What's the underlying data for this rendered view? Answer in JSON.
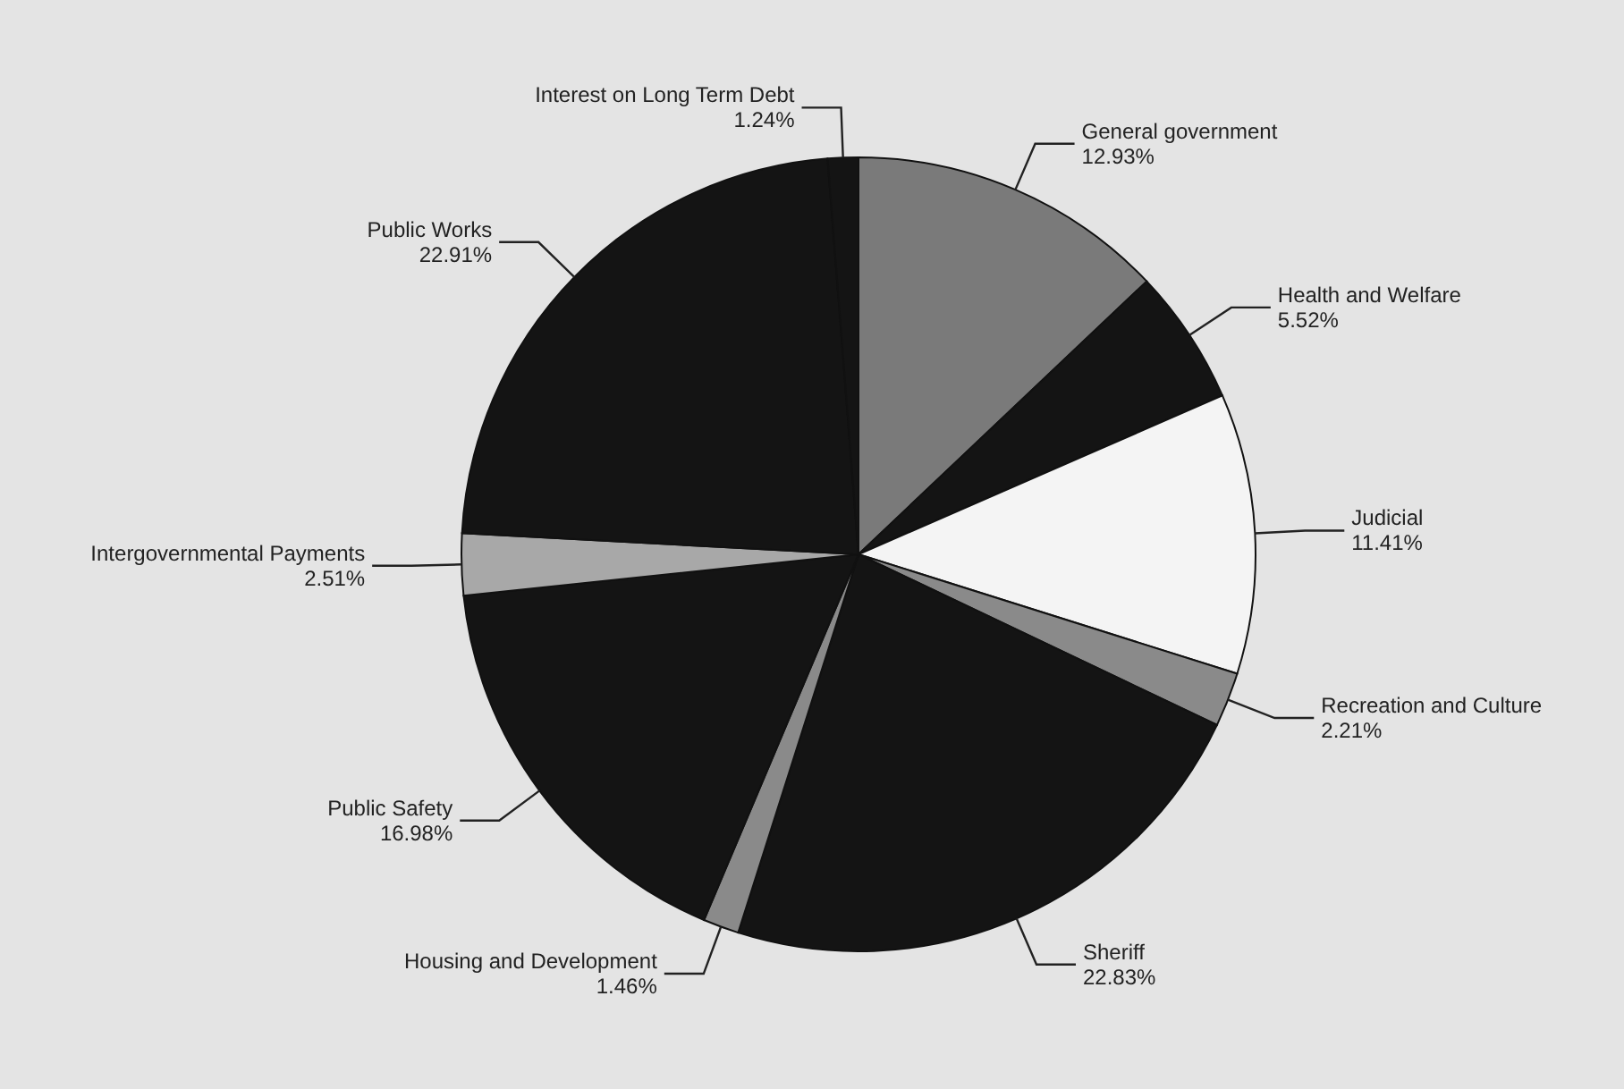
{
  "chart_data": {
    "type": "pie",
    "categories": [
      "General government",
      "Health and Welfare",
      "Judicial",
      "Recreation and Culture",
      "Sheriff",
      "Housing and Development",
      "Public Safety",
      "Intergovernmental Payments",
      "Public Works",
      "Interest on Long Term Debt"
    ],
    "values": [
      12.93,
      5.52,
      11.41,
      2.21,
      22.83,
      1.46,
      16.98,
      2.51,
      22.91,
      1.24
    ],
    "value_labels": [
      "12.93%",
      "5.52%",
      "11.41%",
      "2.21%",
      "22.83%",
      "1.46%",
      "16.98%",
      "2.51%",
      "22.91%",
      "1.24%"
    ],
    "colors": [
      "#7a7a7a",
      "#141414",
      "#f4f4f4",
      "#8a8a8a",
      "#141414",
      "#8a8a8a",
      "#141414",
      "#a8a8a8",
      "#141414",
      "#141414"
    ]
  }
}
